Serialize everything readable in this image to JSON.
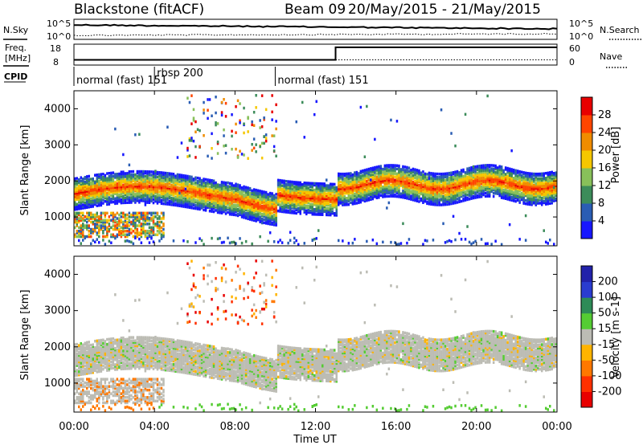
{
  "header": {
    "radar": "Blackstone (fitACF)",
    "beam": "Beam 09",
    "dates": "20/May/2015 - 21/May/2015"
  },
  "left_labels": {
    "nsky": "N.Sky",
    "freq_line1": "Freq.",
    "freq_line2": "[MHz]",
    "cpid": "CPID"
  },
  "right_labels": {
    "nsearch": "N.Search",
    "nave": "Nave"
  },
  "chart_data": [
    {
      "type": "line",
      "name": "noise-panel",
      "left_ticks": [
        "10^5",
        "10^0"
      ],
      "right_ticks": [
        "10^5",
        "10^0"
      ],
      "series": [
        {
          "name": "N.Sky",
          "style": "solid",
          "level": "high, slowly decreasing"
        },
        {
          "name": "N.Search",
          "style": "dotted",
          "level": "low"
        }
      ]
    },
    {
      "type": "line",
      "name": "frequency-nave-panel",
      "left_ticks": [
        "18",
        "8"
      ],
      "right_ticks": [
        "60",
        "0"
      ],
      "ylim_left": [
        8,
        18
      ],
      "ylim_right": [
        0,
        60
      ],
      "freq_steps": [
        {
          "x_start": 0,
          "x_end": 13,
          "value": 10.5
        },
        {
          "x_start": 13,
          "x_end": 24,
          "value": 16.5
        }
      ],
      "nave_level": 15
    },
    {
      "type": "table",
      "name": "cpid-panel",
      "segments": [
        {
          "label": "normal (fast) 151",
          "x_start": 0,
          "x_end": 4.0
        },
        {
          "label": "rbsp 200",
          "x_start": 4.0,
          "x_end": 10.0
        },
        {
          "label": "normal (fast) 151",
          "x_start": 10.0,
          "x_end": 24.0
        }
      ]
    },
    {
      "type": "heatmap",
      "name": "power-panel",
      "ylabel": "Slant Range [km]",
      "ylim": [
        200,
        4500
      ],
      "y_ticks": [
        "1000",
        "2000",
        "3000",
        "4000"
      ],
      "colorbar": {
        "label": "Power [dB]",
        "ticks": [
          "4",
          "8",
          "12",
          "16",
          "20",
          "24",
          "28"
        ],
        "colors": [
          "#1717ff",
          "#2a5db4",
          "#3c8c5a",
          "#88c05a",
          "#f5c700",
          "#f08c00",
          "#ff4500",
          "#e80000"
        ]
      }
    },
    {
      "type": "heatmap",
      "name": "velocity-panel",
      "ylabel": "Slant Range [km]",
      "ylim": [
        200,
        4500
      ],
      "y_ticks": [
        "1000",
        "2000",
        "3000",
        "4000"
      ],
      "colorbar": {
        "label": "Velocity [m s-1]",
        "ticks": [
          "200",
          "100",
          "50",
          "15",
          "-15",
          "-50",
          "-100",
          "-200"
        ],
        "colors": [
          "#2222aa",
          "#2a3cd0",
          "#2e8b57",
          "#55cc33",
          "#bcbcb4",
          "#ffb400",
          "#ff7800",
          "#ff3000",
          "#e80000"
        ]
      }
    }
  ],
  "x_axis": {
    "label": "Time UT",
    "ticks": [
      "00:00",
      "04:00",
      "08:00",
      "12:00",
      "16:00",
      "20:00",
      "00:00"
    ]
  }
}
